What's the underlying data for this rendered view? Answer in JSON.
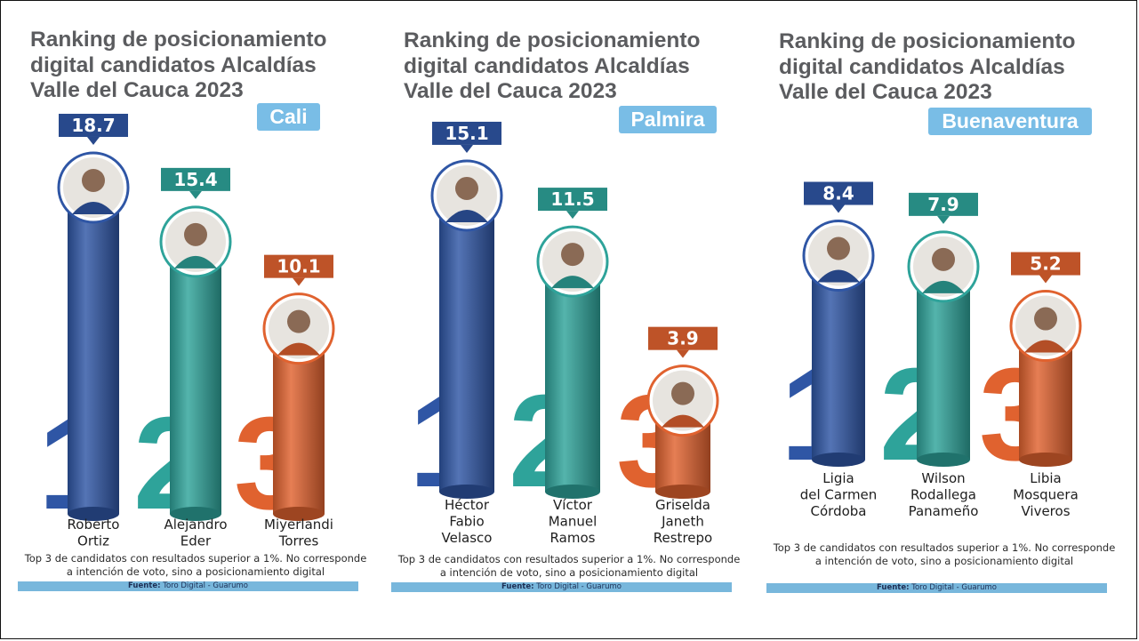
{
  "palette": {
    "rank1": "#2f56a5",
    "rank2": "#2ea39a",
    "rank3": "#e0622f",
    "city_badge": "#79bde6",
    "source_bar": "#78b7dc",
    "title": "#5b5c5f"
  },
  "chart_data": [
    {
      "type": "bar",
      "title": "Ranking de posicionamiento digital candidatos Alcaldías Valle del Cauca 2023",
      "subtitle": "Cali",
      "categories": [
        "Roberto Ortiz",
        "Alejandro Eder",
        "Miyerlandi Torres"
      ],
      "values": [
        18.7,
        15.4,
        10.1
      ],
      "ranks": [
        "1",
        "2",
        "3"
      ],
      "xlabel": "",
      "ylabel": "",
      "ylim": [
        0,
        20
      ],
      "grid": false,
      "legend": "none",
      "note": "Top 3 de candidatos con resultados superior a 1%. No corresponde a  intención de voto, sino a posicionamiento digital",
      "source_label": "Fuente:",
      "source": "Toro Digital - Guarumo"
    },
    {
      "type": "bar",
      "title": "Ranking de posicionamiento digital candidatos Alcaldías Valle del Cauca 2023",
      "subtitle": "Palmira",
      "categories": [
        "Héctor Fabio Velasco",
        "Víctor Manuel Ramos",
        "Griselda Janeth Restrepo"
      ],
      "values": [
        15.1,
        11.5,
        3.9
      ],
      "ranks": [
        "1",
        "2",
        "3"
      ],
      "xlabel": "",
      "ylabel": "",
      "ylim": [
        0,
        16
      ],
      "grid": false,
      "legend": "none",
      "note": "Top 3 de candidatos con resultados superior a 1%. No corresponde a  intención de voto, sino a posicionamiento digital",
      "source_label": "Fuente:",
      "source": "Toro Digital - Guarumo"
    },
    {
      "type": "bar",
      "title": "Ranking de posicionamiento digital candidatos Alcaldías Valle del Cauca 2023",
      "subtitle": "Buenaventura",
      "categories": [
        "Ligia del Carmen Córdoba",
        "Wilson Rodallega Panameño",
        "Libia Mosquera Viveros"
      ],
      "values": [
        8.4,
        7.9,
        5.2
      ],
      "ranks": [
        "1",
        "2",
        "3"
      ],
      "xlabel": "",
      "ylabel": "",
      "ylim": [
        0,
        9
      ],
      "grid": false,
      "legend": "none",
      "note": "Top 3 de candidatos con resultados superior a 1%. No corresponde a  intención de voto, sino a posicionamiento digital",
      "source_label": "Fuente:",
      "source": "Toro Digital - Guarumo"
    }
  ]
}
